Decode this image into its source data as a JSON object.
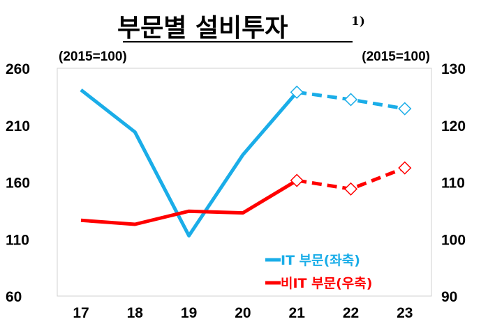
{
  "chart_data": {
    "type": "line",
    "title": "부문별 설비투자",
    "title_superscript": "1)",
    "categories": [
      "17",
      "18",
      "19",
      "20",
      "21",
      "22",
      "23"
    ],
    "left_axis": {
      "unit_label": "(2015=100)",
      "range": [
        60,
        260
      ],
      "ticks": [
        "260",
        "210",
        "160",
        "110",
        "60"
      ]
    },
    "right_axis": {
      "unit_label": "(2015=100)",
      "range": [
        90,
        130
      ],
      "ticks": [
        "130",
        "120",
        "110",
        "100",
        "90"
      ]
    },
    "series": [
      {
        "name": "IT 부문(좌축)",
        "axis": "left",
        "color": "#1AADE8",
        "values": [
          241,
          204,
          113,
          184,
          239,
          232.5,
          224.5
        ],
        "projected_from_index": 4
      },
      {
        "name": "비IT 부문(우축)",
        "axis": "right",
        "color": "#FF0000",
        "values": [
          103.3,
          102.6,
          104.9,
          104.6,
          110.3,
          108.8,
          112.5
        ],
        "projected_from_index": 4
      }
    ],
    "grid": false,
    "legend_placement": "bottom-right"
  }
}
